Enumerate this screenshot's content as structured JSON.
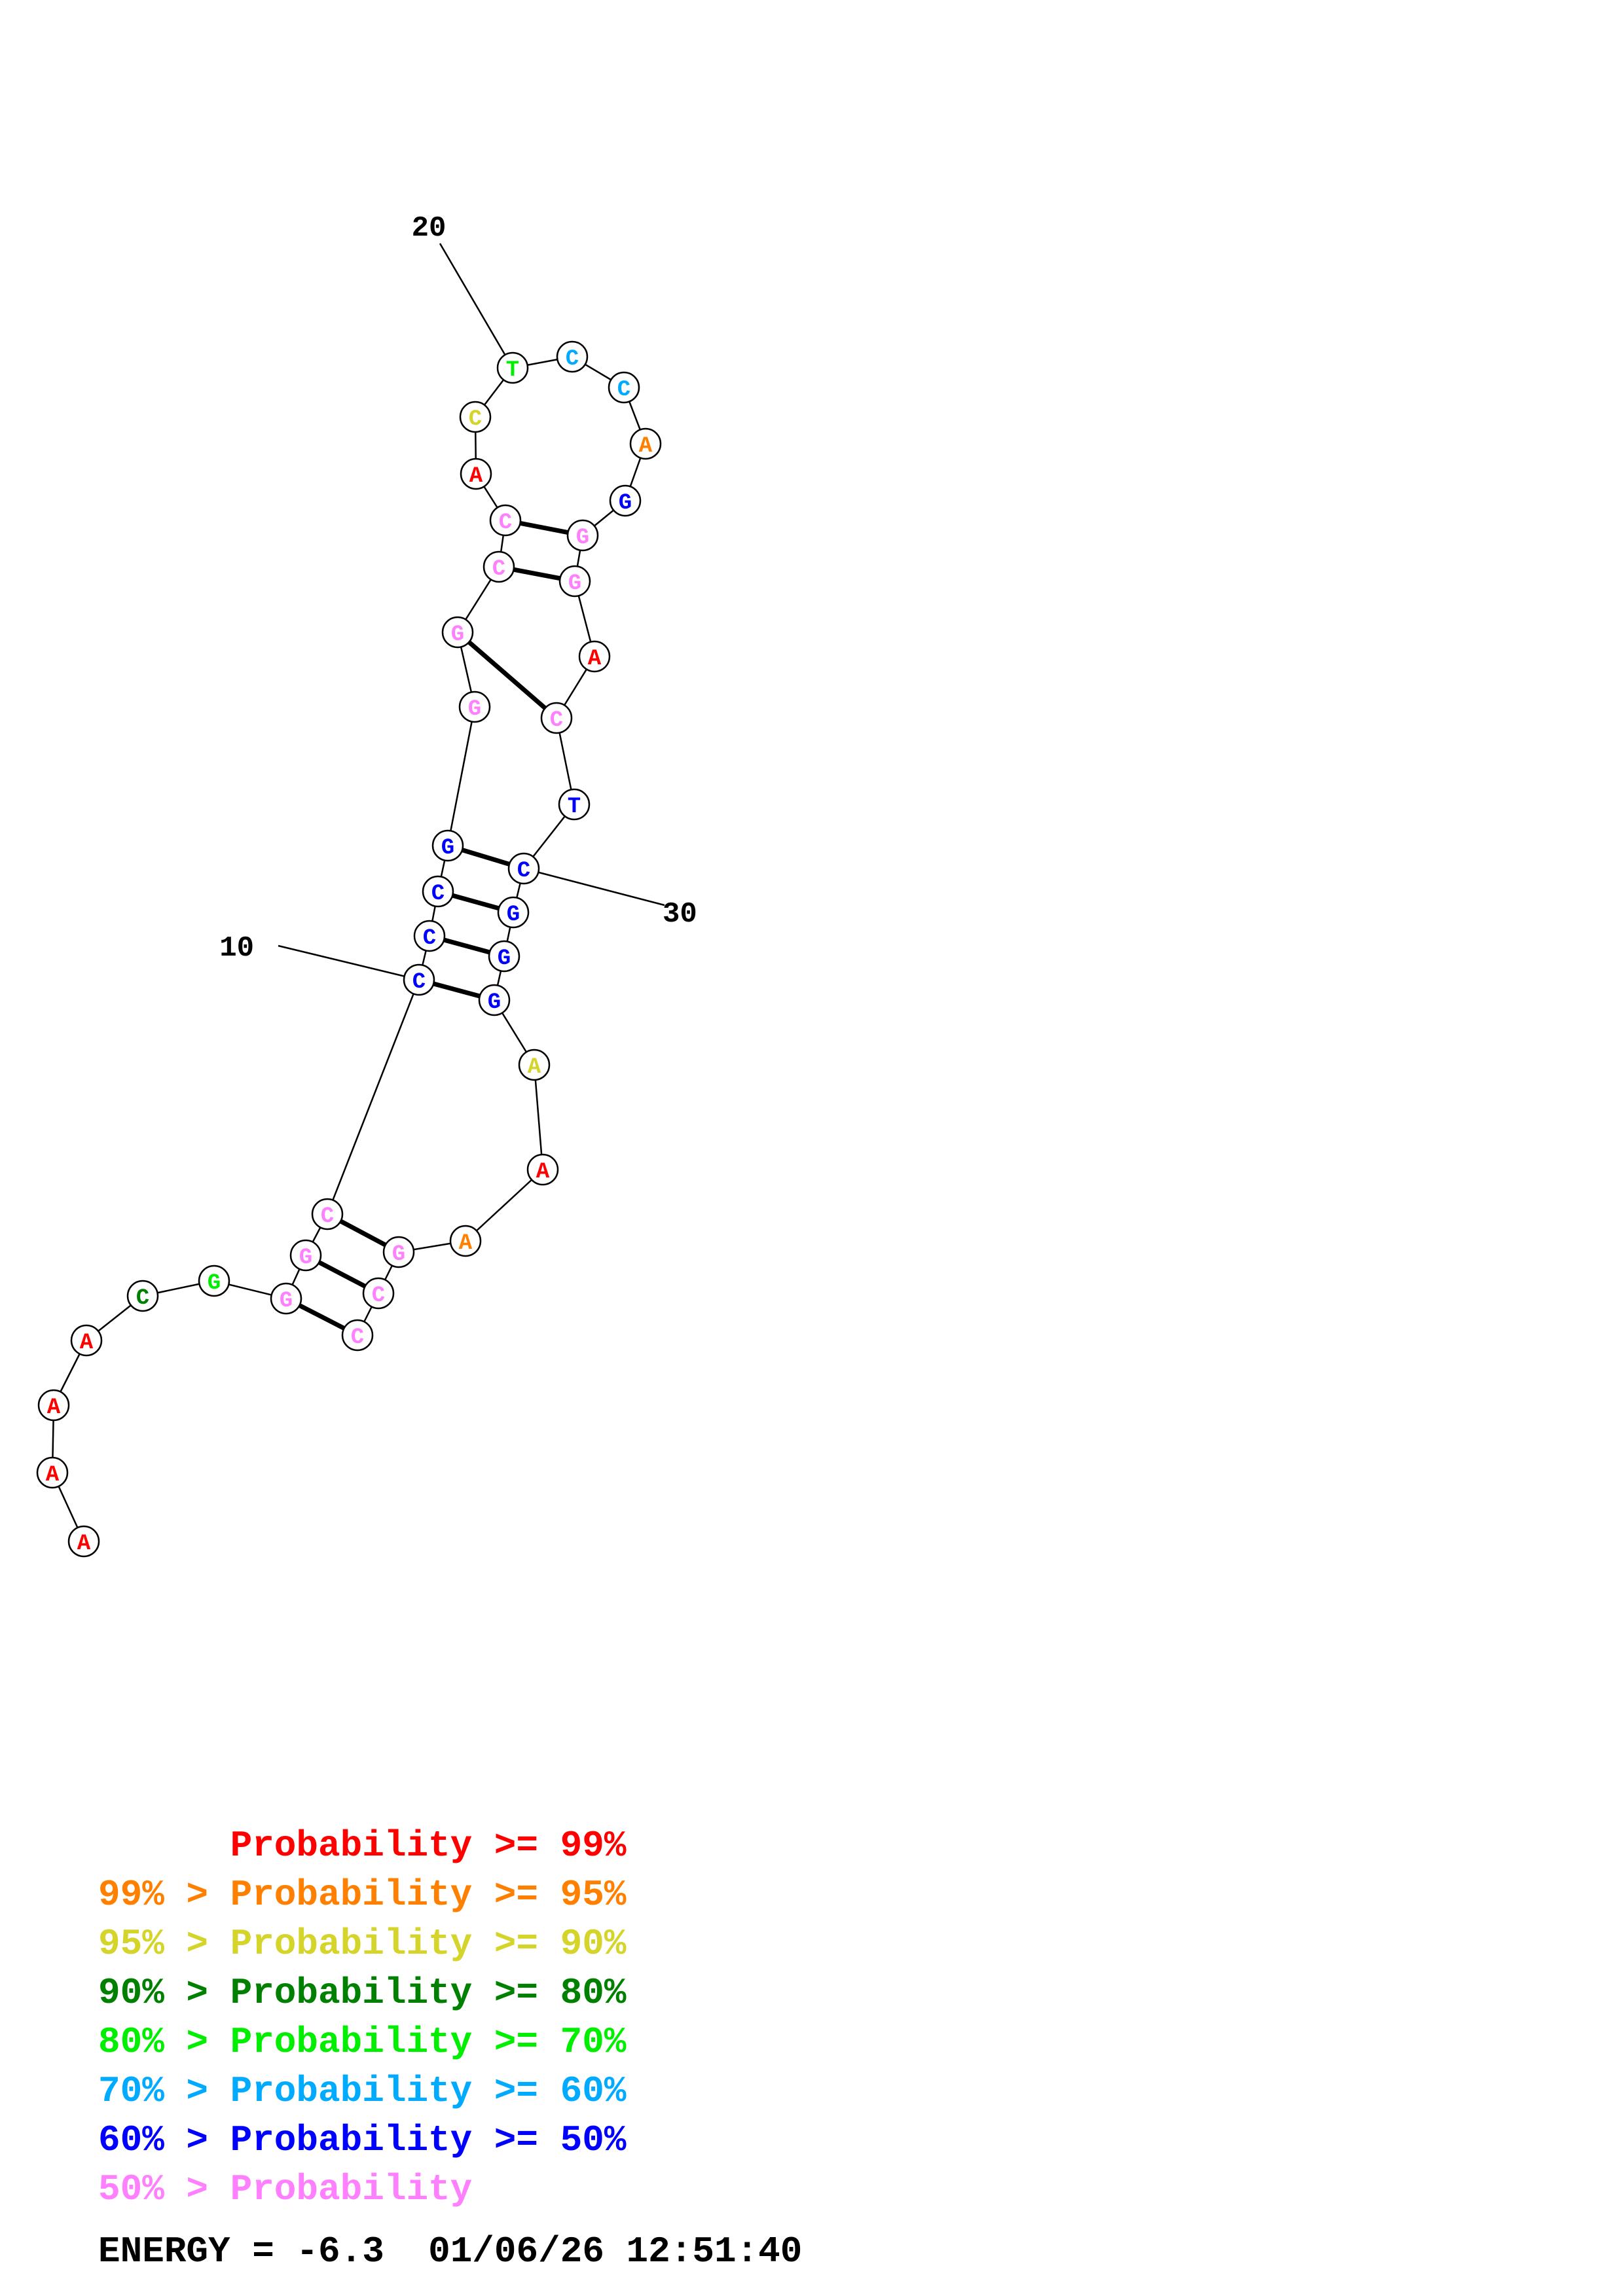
{
  "colors": {
    "p99": "#ff0000",
    "p95": "#ff8000",
    "p90": "#d4d42a",
    "p80": "#008000",
    "p70": "#00ee00",
    "p60": "#00aaff",
    "p50": "#0000ff",
    "plow": "#ff80ff"
  },
  "nucleotides": [
    {
      "base": "A",
      "prob": "p99"
    },
    {
      "base": "A",
      "prob": "p99"
    },
    {
      "base": "A",
      "prob": "p99"
    },
    {
      "base": "A",
      "prob": "p99"
    },
    {
      "base": "C",
      "prob": "p80"
    },
    {
      "base": "G",
      "prob": "p70"
    },
    {
      "base": "G",
      "prob": "plow"
    },
    {
      "base": "G",
      "prob": "plow"
    },
    {
      "base": "C",
      "prob": "plow"
    },
    {
      "base": "C",
      "prob": "p50"
    },
    {
      "base": "C",
      "prob": "p50"
    },
    {
      "base": "C",
      "prob": "p50"
    },
    {
      "base": "G",
      "prob": "p50"
    },
    {
      "base": "G",
      "prob": "plow"
    },
    {
      "base": "G",
      "prob": "plow"
    },
    {
      "base": "C",
      "prob": "plow"
    },
    {
      "base": "C",
      "prob": "plow"
    },
    {
      "base": "A",
      "prob": "p99"
    },
    {
      "base": "C",
      "prob": "p90"
    },
    {
      "base": "T",
      "prob": "p70"
    },
    {
      "base": "C",
      "prob": "p60"
    },
    {
      "base": "C",
      "prob": "p60"
    },
    {
      "base": "A",
      "prob": "p95"
    },
    {
      "base": "G",
      "prob": "p50"
    },
    {
      "base": "G",
      "prob": "plow"
    },
    {
      "base": "G",
      "prob": "plow"
    },
    {
      "base": "A",
      "prob": "p99"
    },
    {
      "base": "C",
      "prob": "plow"
    },
    {
      "base": "T",
      "prob": "p50"
    },
    {
      "base": "C",
      "prob": "p50"
    },
    {
      "base": "G",
      "prob": "p50"
    },
    {
      "base": "G",
      "prob": "p50"
    },
    {
      "base": "G",
      "prob": "p50"
    },
    {
      "base": "A",
      "prob": "p90"
    },
    {
      "base": "A",
      "prob": "p99"
    },
    {
      "base": "A",
      "prob": "p95"
    },
    {
      "base": "G",
      "prob": "plow"
    },
    {
      "base": "C",
      "prob": "plow"
    },
    {
      "base": "C",
      "prob": "plow"
    }
  ],
  "base_pairs": [
    [
      7,
      39
    ],
    [
      8,
      38
    ],
    [
      9,
      37
    ],
    [
      10,
      33
    ],
    [
      11,
      32
    ],
    [
      12,
      31
    ],
    [
      13,
      30
    ],
    [
      15,
      28
    ],
    [
      16,
      26
    ],
    [
      17,
      25
    ]
  ],
  "position_labels": [
    {
      "text": "10",
      "index": 10
    },
    {
      "text": "20",
      "index": 20
    },
    {
      "text": "30",
      "index": 30
    }
  ],
  "legend": [
    {
      "prefix": "",
      "mid": "Probability",
      "suffix": " >= 99%",
      "prob": "p99"
    },
    {
      "prefix": "99% > ",
      "mid": "Probability",
      "suffix": " >= 95%",
      "prob": "p95"
    },
    {
      "prefix": "95% > ",
      "mid": "Probability",
      "suffix": " >= 90%",
      "prob": "p90"
    },
    {
      "prefix": "90% > ",
      "mid": "Probability",
      "suffix": " >= 80%",
      "prob": "p80"
    },
    {
      "prefix": "80% > ",
      "mid": "Probability",
      "suffix": " >= 70%",
      "prob": "p70"
    },
    {
      "prefix": "70% > ",
      "mid": "Probability",
      "suffix": " >= 60%",
      "prob": "p60"
    },
    {
      "prefix": "60% > ",
      "mid": "Probability",
      "suffix": " >= 50%",
      "prob": "p50"
    },
    {
      "prefix": "50% > ",
      "mid": "Probability",
      "suffix": "",
      "prob": "plow"
    }
  ],
  "energy_line": "ENERGY = -6.3  01/06/26 12:51:40"
}
